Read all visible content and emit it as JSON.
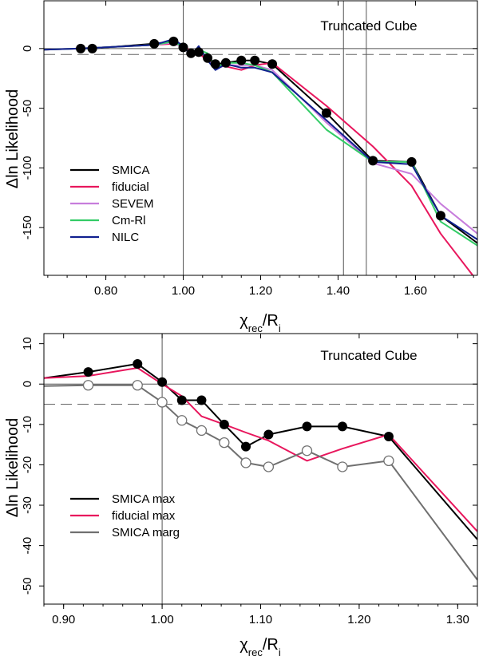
{
  "chart_data": [
    {
      "type": "line",
      "title": "Truncated Cube",
      "xlabel_main": "χ",
      "xlabel_sub": "rec",
      "xlabel_div": "/R",
      "xlabel_sub2": "i",
      "ylabel": "Δln Likelihood",
      "xlim": [
        0.64,
        1.76
      ],
      "ylim": [
        -190,
        40
      ],
      "xticks": [
        0.8,
        1.0,
        1.2,
        1.4,
        1.6
      ],
      "xtick_labels": [
        "0.80",
        "1.00",
        "1.20",
        "1.40",
        "1.60"
      ],
      "yticks": [
        0,
        -50,
        -100,
        -150
      ],
      "ytick_labels": [
        "0",
        "-50",
        "-100",
        "-150"
      ],
      "hline_solid": 0,
      "hline_dashed": -5,
      "vlines": [
        1.0,
        1.414,
        1.473
      ],
      "series": [
        {
          "name": "SMICA",
          "color": "#000000",
          "markers": true,
          "x": [
            0.735,
            0.765,
            0.925,
            0.975,
            1.0,
            1.02,
            1.04,
            1.063,
            1.083,
            1.11,
            1.15,
            1.185,
            1.23,
            1.37,
            1.49,
            1.59,
            1.665,
            1.76
          ],
          "y": [
            0,
            0,
            4,
            6,
            1,
            -4,
            -3,
            -8,
            -13,
            -12,
            -10,
            -10,
            -13,
            -54,
            -94,
            -95,
            -140,
            -163
          ]
        },
        {
          "name": "fiducial",
          "color": "#e8175d",
          "markers": false,
          "x": [
            0.64,
            0.735,
            0.925,
            0.975,
            1.0,
            1.02,
            1.04,
            1.063,
            1.083,
            1.11,
            1.15,
            1.185,
            1.23,
            1.37,
            1.49,
            1.59,
            1.665,
            1.76
          ],
          "y": [
            -1,
            0,
            3,
            4,
            2,
            -2,
            -4,
            -10,
            -14,
            -15,
            -18,
            -14,
            -12,
            -48,
            -82,
            -115,
            -155,
            -195
          ]
        },
        {
          "name": "SEVEM",
          "color": "#c77ddc",
          "markers": false,
          "x": [
            0.64,
            0.735,
            0.925,
            0.975,
            1.0,
            1.02,
            1.04,
            1.063,
            1.083,
            1.11,
            1.15,
            1.185,
            1.23,
            1.37,
            1.49,
            1.59,
            1.665,
            1.76
          ],
          "y": [
            -1,
            0,
            3,
            5,
            1,
            -3,
            -2,
            -8,
            -17,
            -14,
            -14,
            -14,
            -18,
            -62,
            -96,
            -105,
            -130,
            -155
          ]
        },
        {
          "name": "Cm-Rl",
          "color": "#33cc66",
          "markers": false,
          "x": [
            0.64,
            0.735,
            0.925,
            0.975,
            1.0,
            1.02,
            1.04,
            1.063,
            1.083,
            1.11,
            1.15,
            1.185,
            1.23,
            1.37,
            1.49,
            1.59,
            1.665,
            1.76
          ],
          "y": [
            -1,
            0,
            3,
            6,
            1,
            -3,
            -1,
            -4,
            -16,
            -12,
            -12,
            -14,
            -20,
            -68,
            -95,
            -95,
            -145,
            -165
          ]
        },
        {
          "name": "NILC",
          "color": "#11208f",
          "markers": false,
          "x": [
            0.64,
            0.735,
            0.925,
            0.975,
            1.0,
            1.02,
            1.04,
            1.063,
            1.083,
            1.11,
            1.15,
            1.185,
            1.23,
            1.37,
            1.49,
            1.59,
            1.665,
            1.76
          ],
          "y": [
            -1,
            0,
            3,
            8,
            2,
            -6,
            2,
            -10,
            -18,
            -13,
            -16,
            -16,
            -20,
            -60,
            -95,
            -97,
            -140,
            -160
          ]
        }
      ]
    },
    {
      "type": "line",
      "title": "Truncated Cube",
      "xlabel_main": "χ",
      "xlabel_sub": "rec",
      "xlabel_div": "/R",
      "xlabel_sub2": "i",
      "ylabel": "Δln Likelihood",
      "xlim": [
        0.88,
        1.32
      ],
      "ylim": [
        -54.5,
        12.5
      ],
      "xticks": [
        0.9,
        1.0,
        1.1,
        1.2,
        1.3
      ],
      "xtick_labels": [
        "0.90",
        "1.00",
        "1.10",
        "1.20",
        "1.30"
      ],
      "yticks": [
        10,
        0,
        -10,
        -20,
        -30,
        -40,
        -50
      ],
      "ytick_labels": [
        "10",
        "0",
        "-10",
        "-20",
        "-30",
        "-40",
        "-50"
      ],
      "hline_solid": 0,
      "hline_dashed": -5,
      "vlines": [
        1.0
      ],
      "series": [
        {
          "name": "SMICA max",
          "color": "#000000",
          "marker": "filled",
          "x": [
            0.88,
            0.925,
            0.975,
            1.0,
            1.02,
            1.04,
            1.063,
            1.085,
            1.108,
            1.147,
            1.183,
            1.23,
            1.32
          ],
          "y": [
            1.5,
            3,
            5,
            0.5,
            -4,
            -4,
            -10,
            -15.5,
            -12.5,
            -10.5,
            -10.5,
            -13,
            -38.5
          ],
          "marker_x": [
            0.925,
            0.975,
            1.0,
            1.02,
            1.04,
            1.063,
            1.085,
            1.108,
            1.147,
            1.183,
            1.23
          ]
        },
        {
          "name": "fiducial max",
          "color": "#e8175d",
          "marker": "none",
          "x": [
            0.88,
            0.925,
            0.975,
            1.0,
            1.02,
            1.04,
            1.063,
            1.085,
            1.108,
            1.147,
            1.183,
            1.23,
            1.32
          ],
          "y": [
            1.5,
            2,
            4,
            0,
            -3,
            -8,
            -10,
            -12,
            -14,
            -19,
            -16,
            -12.5,
            -36.5
          ],
          "marker_x": []
        },
        {
          "name": "SMICA marg",
          "color": "#707070",
          "marker": "open",
          "x": [
            0.88,
            0.925,
            0.975,
            1.0,
            1.02,
            1.04,
            1.063,
            1.085,
            1.108,
            1.147,
            1.183,
            1.23,
            1.32
          ],
          "y": [
            -0.5,
            -0.3,
            -0.3,
            -4.5,
            -9,
            -11.5,
            -14.5,
            -19.5,
            -20.5,
            -16.5,
            -20.5,
            -19,
            -48.5
          ],
          "marker_x": [
            0.925,
            0.975,
            1.0,
            1.02,
            1.04,
            1.063,
            1.085,
            1.108,
            1.147,
            1.183,
            1.23
          ]
        }
      ]
    }
  ]
}
